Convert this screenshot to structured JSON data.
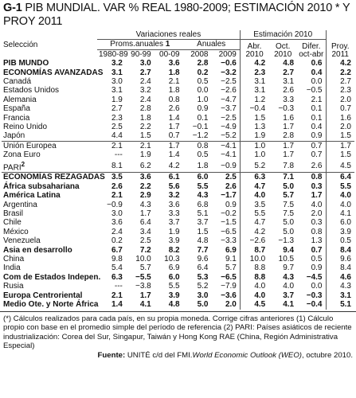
{
  "header": {
    "code": "G-1",
    "title": "PIB MUNDIAL. VAR % REAL 1980-2009;  ESTIMACIÓN 2010 * Y PROY 2011"
  },
  "table": {
    "group_headers": {
      "real": "Variaciones reales",
      "est": "Estimación  2010",
      "proy": "Proy. 2011"
    },
    "sub_headers": {
      "sel": "Selección",
      "proms": "Proms.anuales",
      "proms_note": "1",
      "anuales": "Anuales",
      "abr": "Abr. 2010",
      "oct": "Oct. 2010",
      "dif": "Difer. oct-abr"
    },
    "periods": [
      "1980-89",
      "90-99",
      "00-09",
      "2008",
      "2009"
    ],
    "rows": [
      {
        "label": "PIB MUNDO",
        "bold": true,
        "values": [
          "3.2",
          "3.0",
          "3.6",
          "2.8",
          "−0.6",
          "4.2",
          "4.8",
          "0.6",
          "4.2"
        ]
      },
      {
        "label": "ECONOMÍAS AVANZADAS",
        "bold": true,
        "values": [
          "3.1",
          "2.7",
          "1.8",
          "0.2",
          "−3.2",
          "2.3",
          "2.7",
          "0.4",
          "2.2"
        ]
      },
      {
        "label": "Canadá",
        "values": [
          "3.0",
          "2.4",
          "2.1",
          "0.5",
          "−2.5",
          "3.1",
          "3.1",
          "0.0",
          "2.7"
        ]
      },
      {
        "label": "Estados Unidos",
        "values": [
          "3.1",
          "3.2",
          "1.8",
          "0.0",
          "−2.6",
          "3.1",
          "2.6",
          "−0.5",
          "2.3"
        ]
      },
      {
        "label": "Alemania",
        "values": [
          "1.9",
          "2.4",
          "0.8",
          "1.0",
          "−4.7",
          "1.2",
          "3.3",
          "2.1",
          "2.0"
        ]
      },
      {
        "label": "España",
        "values": [
          "2.7",
          "2.8",
          "2.6",
          "0.9",
          "−3.7",
          "−0.4",
          "−0.3",
          "0.1",
          "0.7"
        ]
      },
      {
        "label": "Francia",
        "values": [
          "2.3",
          "1.8",
          "1.4",
          "0.1",
          "−2.5",
          "1.5",
          "1.6",
          "0.1",
          "1.6"
        ]
      },
      {
        "label": "Reino Unido",
        "values": [
          "2.5",
          "2.2",
          "1.7",
          "−0.1",
          "−4.9",
          "1.3",
          "1.7",
          "0.4",
          "2.0"
        ]
      },
      {
        "label": "Japón",
        "values": [
          "4.4",
          "1.5",
          "0.7",
          "−1.2",
          "−5.2",
          "1.9",
          "2.8",
          "0.9",
          "1.5"
        ]
      },
      {
        "label": "Unión Europea",
        "rule_above": true,
        "values": [
          "2.1",
          "2.1",
          "1.7",
          "0.8",
          "−4.1",
          "1.0",
          "1.7",
          "0.7",
          "1.7"
        ]
      },
      {
        "label": "Zona Euro",
        "values": [
          "---",
          "1.9",
          "1.4",
          "0.5",
          "−4.1",
          "1.0",
          "1.7",
          "0.7",
          "1.5"
        ]
      },
      {
        "label": "PARI",
        "note": "2",
        "values": [
          "8.1",
          "6.2",
          "4.2",
          "1.8",
          "−0.9",
          "5.2",
          "7.8",
          "2.6",
          "4.5"
        ]
      },
      {
        "label": "ECONOMÍAS REZAGADAS",
        "bold": true,
        "rule_above": true,
        "values": [
          "3.5",
          "3.6",
          "6.1",
          "6.0",
          "2.5",
          "6.3",
          "7.1",
          "0.8",
          "6.4"
        ]
      },
      {
        "label": "África subsahariana",
        "bold": true,
        "values": [
          "2.6",
          "2.2",
          "5.6",
          "5.5",
          "2.6",
          "4.7",
          "5.0",
          "0.3",
          "5.5"
        ]
      },
      {
        "label": "América Latina",
        "bold": true,
        "values": [
          "2.1",
          "2.9",
          "3.2",
          "4.3",
          "−1.7",
          "4.0",
          "5.7",
          "1.7",
          "4.0"
        ]
      },
      {
        "label": "Argentina",
        "values": [
          "−0.9",
          "4.3",
          "3.6",
          "6.8",
          "0.9",
          "3.5",
          "7.5",
          "4.0",
          "4.0"
        ]
      },
      {
        "label": "Brasil",
        "values": [
          "3.0",
          "1.7",
          "3.3",
          "5.1",
          "−0.2",
          "5.5",
          "7.5",
          "2.0",
          "4.1"
        ]
      },
      {
        "label": "Chile",
        "values": [
          "3.6",
          "6.4",
          "3.7",
          "3.7",
          "−1.5",
          "4.7",
          "5.0",
          "0.3",
          "6.0"
        ]
      },
      {
        "label": "México",
        "values": [
          "2.4",
          "3.4",
          "1.9",
          "1.5",
          "−6.5",
          "4.2",
          "5.0",
          "0.8",
          "3.9"
        ]
      },
      {
        "label": "Venezuela",
        "values": [
          "0.2",
          "2.5",
          "3.9",
          "4.8",
          "−3.3",
          "−2.6",
          "−1.3",
          "1.3",
          "0.5"
        ]
      },
      {
        "label": "Asia en desarrollo",
        "bold": true,
        "values": [
          "6.7",
          "7.2",
          "8.2",
          "7.7",
          "6.9",
          "8.7",
          "9.4",
          "0.7",
          "8.4"
        ]
      },
      {
        "label": "China",
        "values": [
          "9.8",
          "10.0",
          "10.3",
          "9.6",
          "9.1",
          "10.0",
          "10.5",
          "0.5",
          "9.6"
        ]
      },
      {
        "label": "India",
        "values": [
          "5.4",
          "5.7",
          "6.9",
          "6.4",
          "5.7",
          "8.8",
          "9.7",
          "0.9",
          "8.4"
        ]
      },
      {
        "label": "Com de Estados Indepen.",
        "bold": true,
        "values": [
          "6.3",
          "−5.5",
          "6.0",
          "5.3",
          "−6.5",
          "8.8",
          "4.3",
          "−4.5",
          "4.6"
        ]
      },
      {
        "label": "Rusia",
        "values": [
          "---",
          "−3.8",
          "5.5",
          "5.2",
          "−7.9",
          "4.0",
          "4.0",
          "0.0",
          "4.3"
        ]
      },
      {
        "label": "Europa Centroriental",
        "bold": true,
        "values": [
          "2.1",
          "1.7",
          "3.9",
          "3.0",
          "−3.6",
          "4.0",
          "3.7",
          "−0.3",
          "3.1"
        ]
      },
      {
        "label": "Medio Ote. y Norte África",
        "bold": true,
        "values": [
          "1.4",
          "4.1",
          "4.8",
          "5.0",
          "2.0",
          "4.5",
          "4.1",
          "−0.4",
          "5.1"
        ]
      }
    ]
  },
  "footnotes": {
    "text": "(*) Cálculos realizados para cada país, en su propia moneda. Corrige cifras anteriores  (1) Cálculo propio con base en el promedio simple del período de referencia (2) PARI: Países asiáticos de reciente industrialización: Corea del Sur, Singapur, Taiwán y Hong Kong RAE (China, Región Administrativa Especial)",
    "source_label": "Fuente:",
    "source": "UNITÉ c/d del FMI.",
    "source_title": "World Economic Outlook (WEO)",
    "source_date": ", octubre 2010."
  }
}
